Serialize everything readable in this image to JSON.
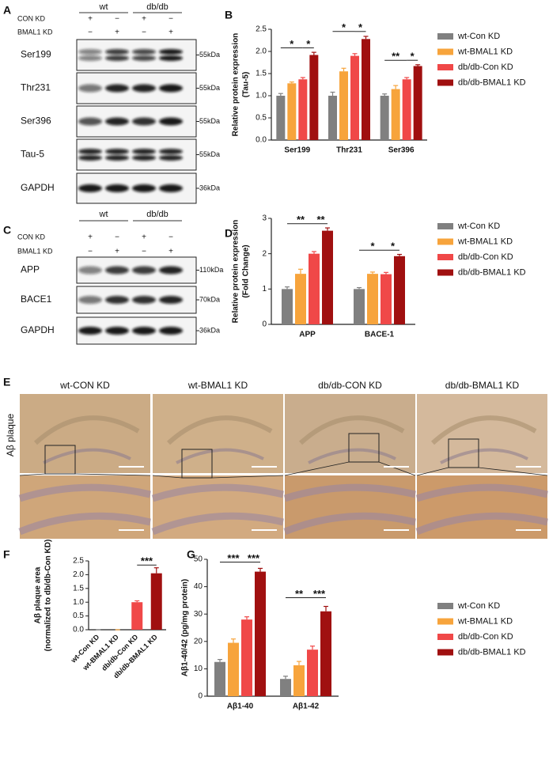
{
  "panel_labels": [
    "A",
    "B",
    "C",
    "D",
    "E",
    "F",
    "G"
  ],
  "blot_a": {
    "groups": [
      "wt",
      "db/db"
    ],
    "treatments": [
      {
        "name": "CON KD",
        "signs": [
          "+",
          "−",
          "+",
          "−"
        ]
      },
      {
        "name": "BMAL1 KD",
        "signs": [
          "−",
          "+",
          "−",
          "+"
        ]
      }
    ],
    "rows": [
      {
        "label": "Ser199",
        "size": "55kDa"
      },
      {
        "label": "Thr231",
        "size": "55kDa"
      },
      {
        "label": "Ser396",
        "size": "55kDa"
      },
      {
        "label": "Tau-5",
        "size": "55kDa"
      },
      {
        "label": "GAPDH",
        "size": "36kDa"
      }
    ]
  },
  "blot_c": {
    "groups": [
      "wt",
      "db/db"
    ],
    "treatments": [
      {
        "name": "CON KD",
        "signs": [
          "+",
          "−",
          "+",
          "−"
        ]
      },
      {
        "name": "BMAL1 KD",
        "signs": [
          "−",
          "+",
          "−",
          "+"
        ]
      }
    ],
    "rows": [
      {
        "label": "APP",
        "size": "110kDa"
      },
      {
        "label": "BACE1",
        "size": "70kDa"
      },
      {
        "label": "GAPDH",
        "size": "36kDa"
      }
    ]
  },
  "histology": {
    "row_label": "Aβ plaque",
    "columns": [
      "wt-CON KD",
      "wt-BMAL1 KD",
      "db/db-CON KD",
      "db/db-BMAL1 KD"
    ]
  },
  "chart_data": [
    {
      "type": "bar",
      "ylabel": [
        "Relative protein expression",
        "(Tau-5)"
      ],
      "categories": [
        "Ser199",
        "Thr231",
        "Ser396"
      ],
      "series": [
        {
          "name": "wt-Con KD",
          "color": "#808080",
          "values": [
            1.0,
            1.0,
            1.0
          ],
          "errors": [
            0.05,
            0.08,
            0.04
          ]
        },
        {
          "name": "wt-BMAL1 KD",
          "color": "#f7a43c",
          "values": [
            1.28,
            1.55,
            1.15
          ],
          "errors": [
            0.03,
            0.07,
            0.08
          ]
        },
        {
          "name": "db/db-Con KD",
          "color": "#f04848",
          "values": [
            1.37,
            1.9,
            1.37
          ],
          "errors": [
            0.04,
            0.05,
            0.04
          ]
        },
        {
          "name": "db/db-BMAL1 KD",
          "color": "#a01010",
          "values": [
            1.92,
            2.28,
            1.67
          ],
          "errors": [
            0.06,
            0.06,
            0.03
          ]
        }
      ],
      "ylim": [
        0,
        2.5
      ],
      "yticks": [
        {
          "value": 0,
          "label": "0.0"
        },
        0.5,
        {
          "value": 1,
          "label": "1.0"
        },
        1.5,
        {
          "value": 2,
          "label": "2.0"
        },
        2.5
      ],
      "annotations": [
        "*",
        "*",
        "*",
        "*",
        "**",
        "*"
      ],
      "legend": "right"
    },
    {
      "type": "bar",
      "ylabel": [
        "Relative protein expression",
        "(Fold Change)"
      ],
      "categories": [
        "APP",
        "BACE-1"
      ],
      "series": [
        {
          "name": "wt-Con KD",
          "color": "#808080",
          "values": [
            1.0,
            1.0
          ],
          "errors": [
            0.06,
            0.04
          ]
        },
        {
          "name": "wt-BMAL1 KD",
          "color": "#f7a43c",
          "values": [
            1.43,
            1.43
          ],
          "errors": [
            0.13,
            0.05
          ]
        },
        {
          "name": "db/db-Con KD",
          "color": "#f04848",
          "values": [
            2.0,
            1.42
          ],
          "errors": [
            0.06,
            0.05
          ]
        },
        {
          "name": "db/db-BMAL1 KD",
          "color": "#a01010",
          "values": [
            2.65,
            1.93
          ],
          "errors": [
            0.08,
            0.05
          ]
        }
      ],
      "ylim": [
        0,
        3
      ],
      "yticks": [
        0,
        1,
        2,
        3
      ],
      "annotations": [
        "**",
        "**",
        "*",
        "*"
      ],
      "legend": "right"
    },
    {
      "type": "bar",
      "ylabel": [
        "Aβ plaque area",
        "(normalized to db/db-Con KD)"
      ],
      "categories": [
        "wt-Con KD",
        "wt-BMAL1 KD",
        "db/db-Con KD",
        "db/db-BMAL1 KD"
      ],
      "values": [
        0,
        0,
        1.0,
        2.05
      ],
      "errors": [
        0,
        0,
        0.05,
        0.2
      ],
      "colors": [
        "#808080",
        "#f7a43c",
        "#f04848",
        "#a01010"
      ],
      "ylim": [
        0,
        2.5
      ],
      "yticks": [
        {
          "value": 0,
          "label": "0.0"
        },
        0.5,
        {
          "value": 1,
          "label": "1.0"
        },
        1.5,
        {
          "value": 2,
          "label": "2.0"
        },
        2.5
      ],
      "annotations": [
        "***"
      ]
    },
    {
      "type": "bar",
      "ylabel": [
        "Aβ1-40/42 (pg/mg protein)"
      ],
      "categories": [
        "Aβ1-40",
        "Aβ1-42"
      ],
      "series": [
        {
          "name": "wt-Con KD",
          "color": "#808080",
          "values": [
            12.5,
            6.3
          ],
          "errors": [
            0.9,
            1.0
          ]
        },
        {
          "name": "wt-BMAL1 KD",
          "color": "#f7a43c",
          "values": [
            19.5,
            11.3
          ],
          "errors": [
            1.4,
            1.4
          ]
        },
        {
          "name": "db/db-Con KD",
          "color": "#f04848",
          "values": [
            28,
            17
          ],
          "errors": [
            1.0,
            1.3
          ]
        },
        {
          "name": "db/db-BMAL1 KD",
          "color": "#a01010",
          "values": [
            45.5,
            31
          ],
          "errors": [
            1.2,
            1.8
          ]
        }
      ],
      "ylim": [
        0,
        50
      ],
      "yticks": [
        0,
        10,
        20,
        30,
        40,
        50
      ],
      "annotations": [
        "***",
        "***",
        "**",
        "***"
      ],
      "legend": "right"
    }
  ]
}
